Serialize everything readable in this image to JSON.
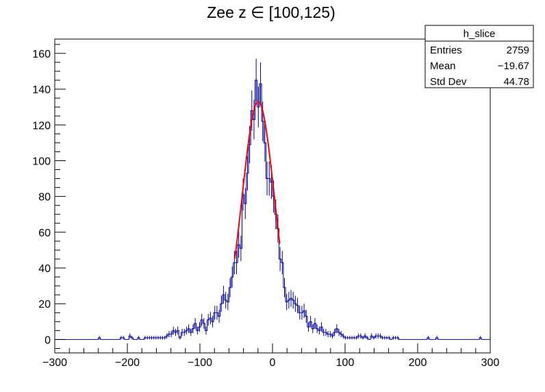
{
  "chart_data": {
    "type": "histogram",
    "title": "Zee z ∈ [100,125)",
    "xlabel": "",
    "ylabel": "",
    "xlim": [
      -300,
      300
    ],
    "ylim": [
      -7.5,
      168
    ],
    "xticks": [
      -300,
      -200,
      -100,
      0,
      100,
      200,
      300
    ],
    "xtick_labels": [
      "−300",
      "−200",
      "−100",
      "0",
      "100",
      "200",
      "300"
    ],
    "yticks": [
      0,
      20,
      40,
      60,
      80,
      100,
      120,
      140,
      160
    ],
    "ytick_labels": [
      "0",
      "20",
      "40",
      "60",
      "80",
      "100",
      "120",
      "140",
      "160"
    ],
    "bin_width": 3,
    "series": [
      {
        "name": "h_slice",
        "color": "#000099",
        "anchors": [
          [
            -300,
            0.2
          ],
          [
            -260,
            0.3
          ],
          [
            -220,
            0.6
          ],
          [
            -200,
            0.9
          ],
          [
            -180,
            1.3
          ],
          [
            -160,
            2.0
          ],
          [
            -140,
            3.2
          ],
          [
            -120,
            4.3
          ],
          [
            -100,
            7.0
          ],
          [
            -90,
            9.5
          ],
          [
            -80,
            11.5
          ],
          [
            -70,
            17.5
          ],
          [
            -60,
            26
          ],
          [
            -50,
            41
          ],
          [
            -45,
            53
          ],
          [
            -40,
            74
          ],
          [
            -35,
            98
          ],
          [
            -30,
            115
          ],
          [
            -25,
            130
          ],
          [
            -20,
            139
          ],
          [
            -15,
            131
          ],
          [
            -10,
            110
          ],
          [
            -5,
            96
          ],
          [
            0,
            78
          ],
          [
            5,
            62
          ],
          [
            10,
            44
          ],
          [
            15,
            34
          ],
          [
            20,
            27
          ],
          [
            30,
            19
          ],
          [
            40,
            14
          ],
          [
            50,
            10
          ],
          [
            60,
            7
          ],
          [
            70,
            5
          ],
          [
            80,
            4
          ],
          [
            100,
            2.8
          ],
          [
            120,
            2.0
          ],
          [
            140,
            1.6
          ],
          [
            160,
            1.4
          ],
          [
            180,
            0.7
          ],
          [
            200,
            0.3
          ],
          [
            240,
            0.2
          ],
          [
            300,
            0.1
          ]
        ]
      },
      {
        "name": "fit",
        "type": "line",
        "color": "#ff0000",
        "function": "gaussian",
        "amplitude": 133,
        "mean": -19.67,
        "sigma": 22,
        "x_range": [
          -52,
          10
        ]
      }
    ]
  },
  "stats_box": {
    "title": "h_slice",
    "rows": [
      {
        "label": "Entries",
        "value": "2759"
      },
      {
        "label": "Mean",
        "value": "−19.67"
      },
      {
        "label": "Std Dev",
        "value": "44.78"
      }
    ]
  }
}
